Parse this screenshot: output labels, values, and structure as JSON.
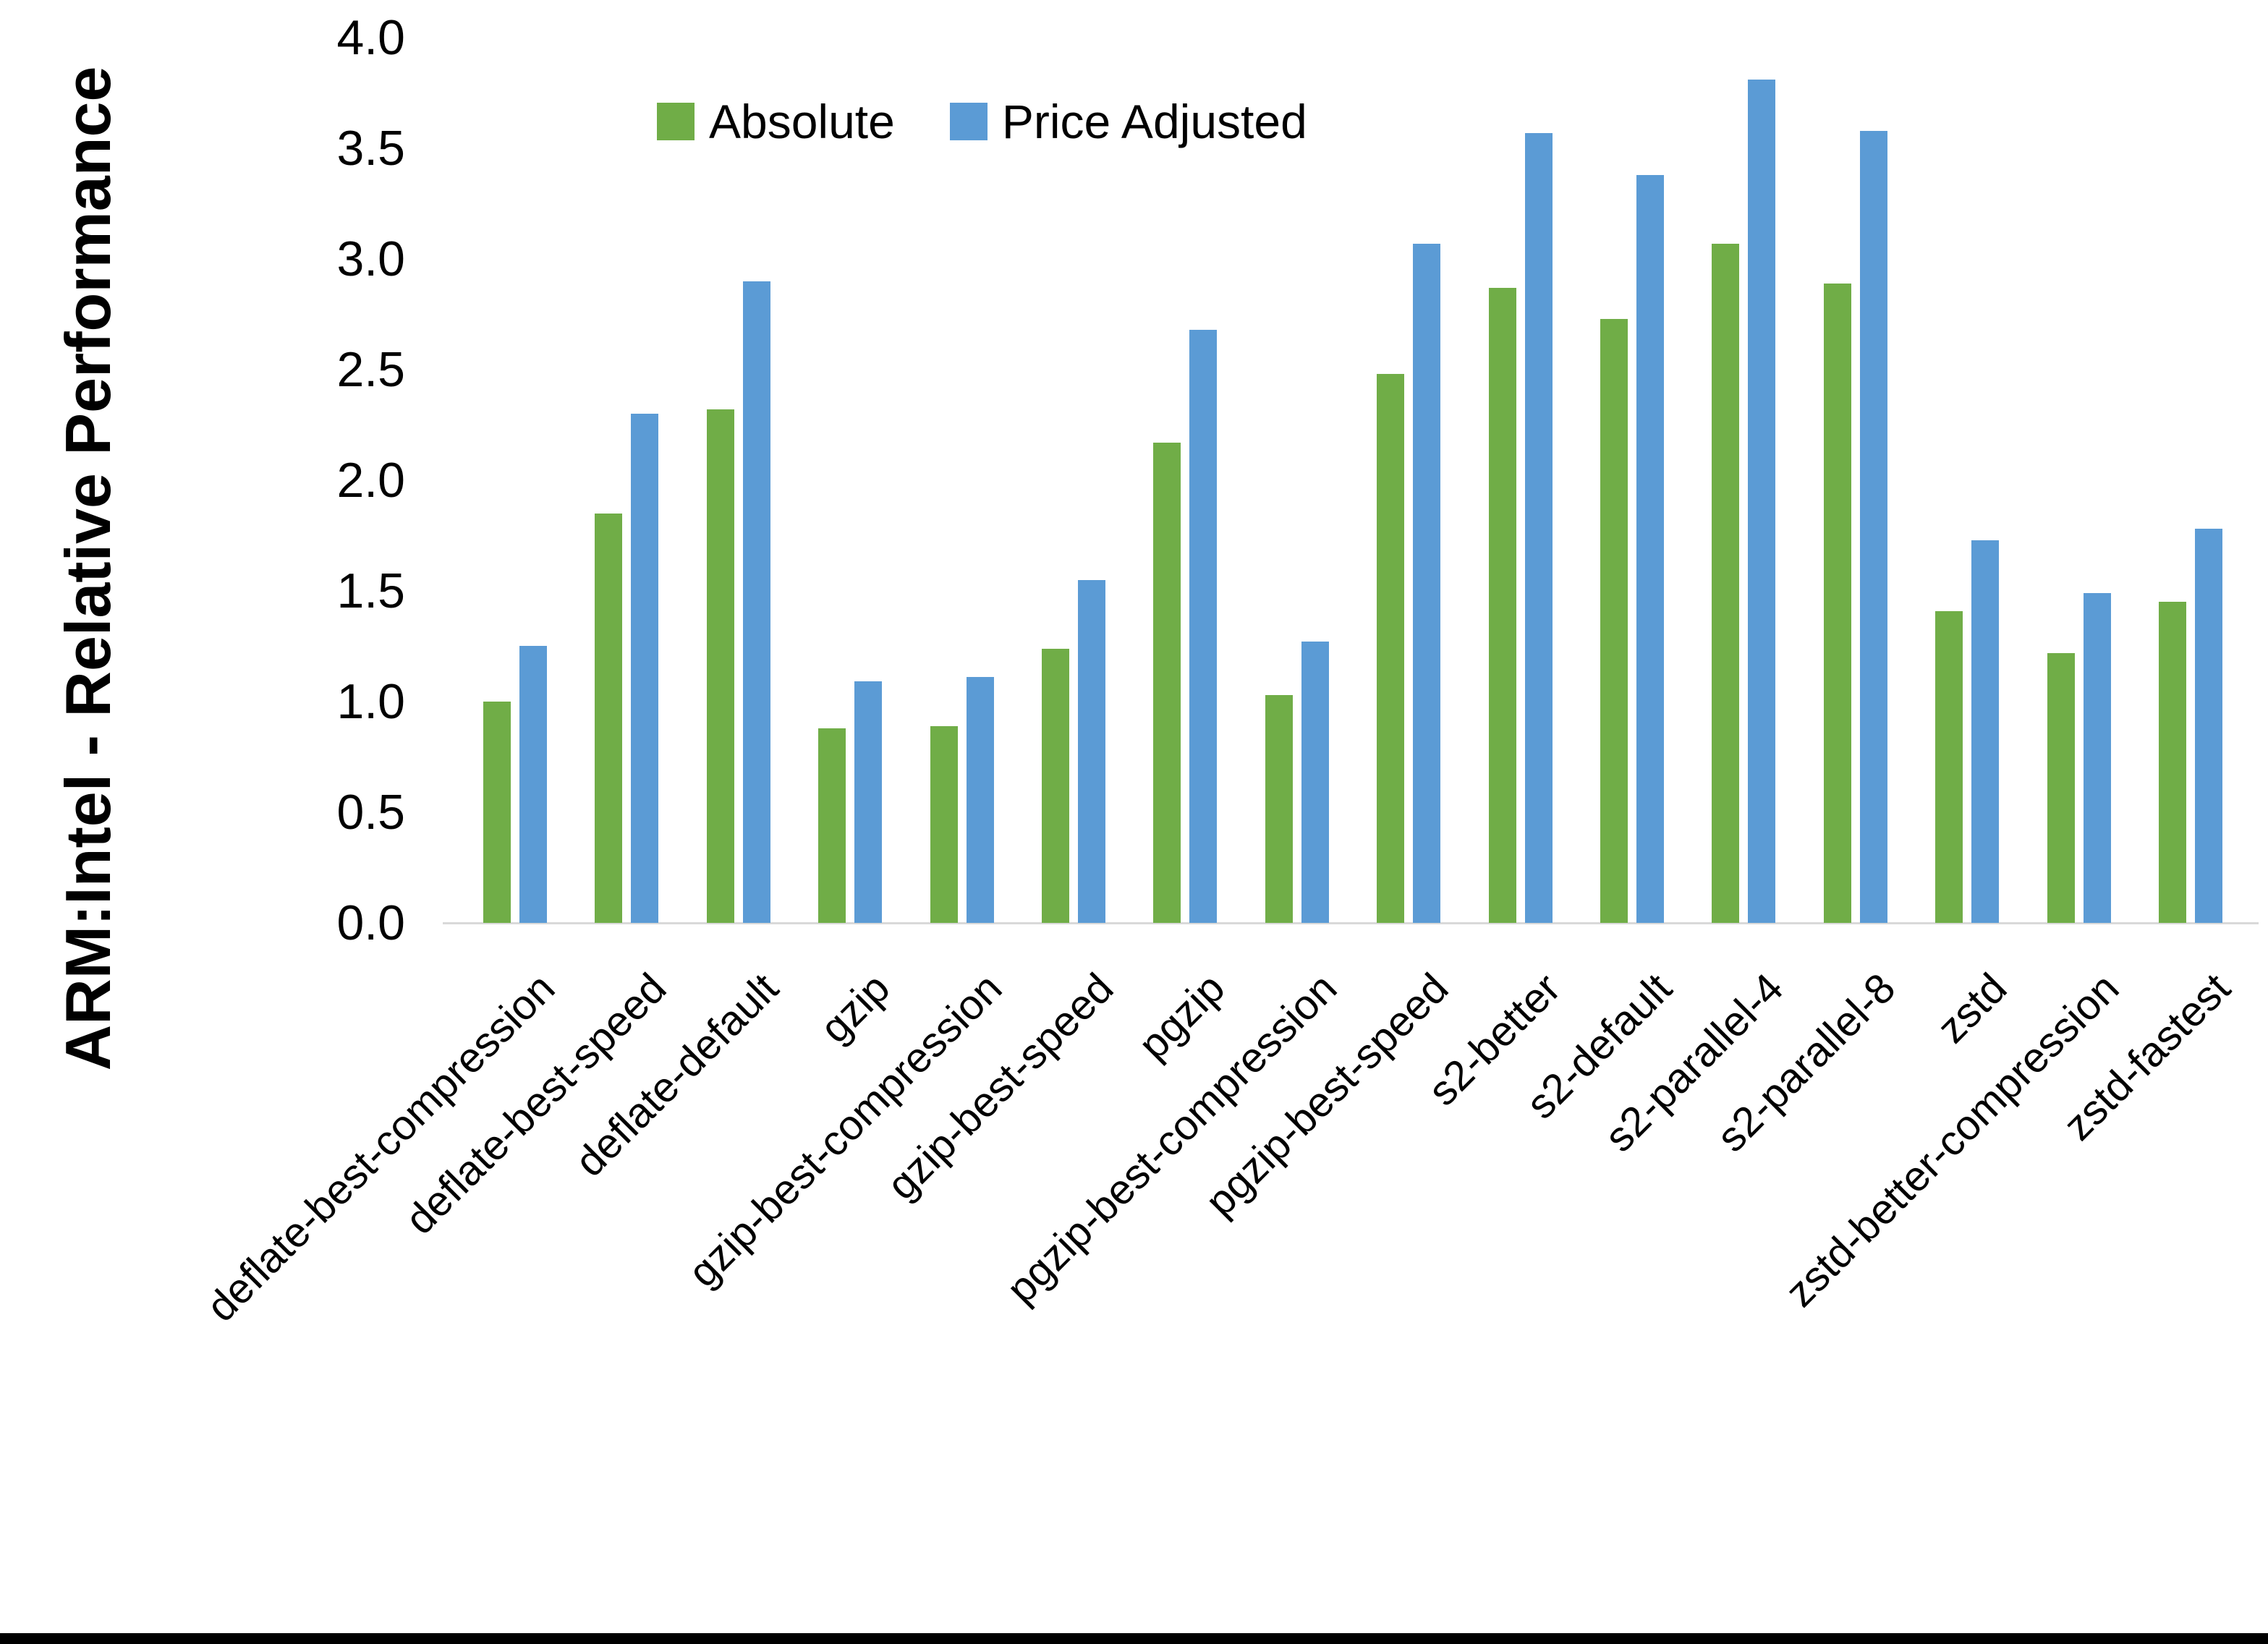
{
  "page": {
    "background_color": "#ffffff",
    "bottom_border_color": "#000000"
  },
  "chart_data": {
    "type": "bar",
    "title": "",
    "xlabel": "",
    "ylabel": "ARM:Intel - Relative Performance",
    "ylim": [
      0.0,
      4.0
    ],
    "y_step": 0.5,
    "y_tick_labels": [
      "0.0",
      "0.5",
      "1.0",
      "1.5",
      "2.0",
      "2.5",
      "3.0",
      "3.5",
      "4.0"
    ],
    "grid": false,
    "legend_position": "top",
    "axis_line_color": "#d9d9d9",
    "categories": [
      "deflate-best-compression",
      "deflate-best-speed",
      "deflate-default",
      "gzip",
      "gzip-best-compression",
      "gzip-best-speed",
      "pgzip",
      "pgzip-best-compression",
      "pgzip-best-speed",
      "s2-better",
      "s2-default",
      "s2-parallel-4",
      "s2-parallel-8",
      "zstd",
      "zstd-better-compression",
      "zstd-fastest"
    ],
    "series": [
      {
        "name": "Absolute",
        "color": "#70AD47",
        "values": [
          1.0,
          1.85,
          2.32,
          0.88,
          0.89,
          1.24,
          2.17,
          1.03,
          2.48,
          2.87,
          2.73,
          3.07,
          2.89,
          1.41,
          1.22,
          1.45
        ]
      },
      {
        "name": "Price Adjusted",
        "color": "#5B9BD5",
        "values": [
          1.25,
          2.3,
          2.9,
          1.09,
          1.11,
          1.55,
          2.68,
          1.27,
          3.07,
          3.57,
          3.38,
          3.81,
          3.58,
          1.73,
          1.49,
          1.78
        ]
      }
    ]
  }
}
